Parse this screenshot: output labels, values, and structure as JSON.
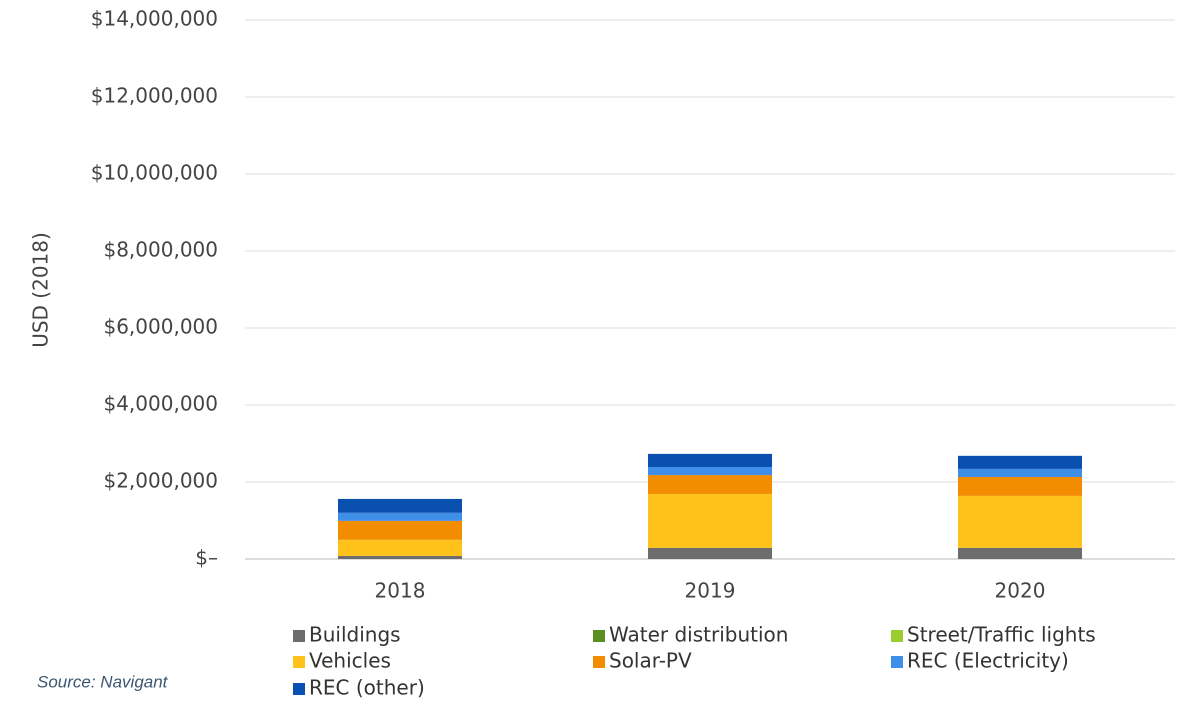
{
  "chart_data": {
    "type": "stacked_bar",
    "y_label": "USD (2018)",
    "source": "Source: Navigant",
    "categories": [
      "2018",
      "2019",
      "2020"
    ],
    "series": [
      {
        "name": "Buildings",
        "color": "#6d6d6d",
        "values": [
          80000,
          290000,
          290000
        ]
      },
      {
        "name": "Water distribution",
        "color": "#5b8f22",
        "values": [
          0,
          0,
          0
        ]
      },
      {
        "name": "Street/Traffic lights",
        "color": "#9acd32",
        "values": [
          0,
          0,
          0
        ]
      },
      {
        "name": "Vehicles",
        "color": "#ffc21a",
        "values": [
          420000,
          1400000,
          1350000
        ]
      },
      {
        "name": "Solar-PV",
        "color": "#f28c00",
        "values": [
          490000,
          490000,
          490000
        ]
      },
      {
        "name": "REC (Electricity)",
        "color": "#3f8fe8",
        "values": [
          210000,
          210000,
          210000
        ]
      },
      {
        "name": "REC (other)",
        "color": "#0a50b0",
        "values": [
          360000,
          340000,
          340000
        ]
      }
    ],
    "ylim": [
      0,
      14000000
    ],
    "yticks": [
      {
        "value": 0,
        "label": "$–"
      },
      {
        "value": 2000000,
        "label": "$2,000,000"
      },
      {
        "value": 4000000,
        "label": "$4,000,000"
      },
      {
        "value": 6000000,
        "label": "$6,000,000"
      },
      {
        "value": 8000000,
        "label": "$8,000,000"
      },
      {
        "value": 10000000,
        "label": "$10,000,000"
      },
      {
        "value": 12000000,
        "label": "$12,000,000"
      },
      {
        "value": 14000000,
        "label": "$14,000,000"
      }
    ],
    "grid": true
  }
}
